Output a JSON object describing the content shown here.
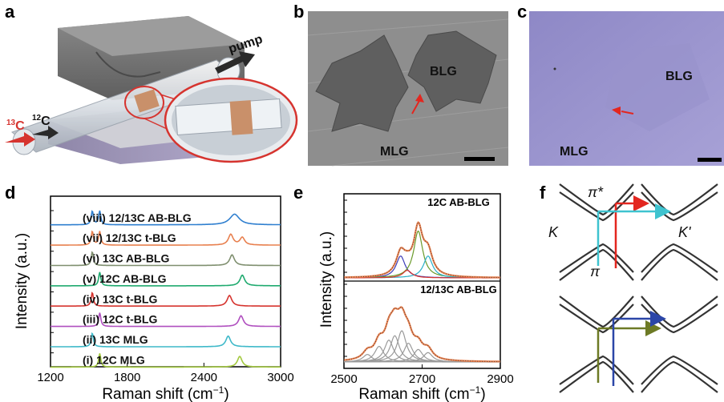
{
  "panels": {
    "a": {
      "label": "a",
      "inlet_13c": "13C",
      "inlet_12c": "12C",
      "pump": "pump"
    },
    "b": {
      "label": "b",
      "region_bilayer": "BLG",
      "region_monolayer": "MLG"
    },
    "c": {
      "label": "c",
      "region_bilayer": "BLG",
      "region_monolayer": "MLG"
    },
    "d": {
      "label": "d",
      "ylabel": "Intensity (a.u.)",
      "xlabel": "Raman shift (cm",
      "xlabel_sup": "−1",
      "xlabel_tail": ")"
    },
    "e": {
      "label": "e",
      "ylabel": "Intensity (a.u.)",
      "xlabel": "Raman shift (cm",
      "xlabel_sup": "−1",
      "xlabel_tail": ")",
      "top_label": "12C AB-BLG",
      "bottom_label": "12/13C AB-BLG"
    },
    "f": {
      "label": "f",
      "pi_star": "π*",
      "pi": "π",
      "k": "K",
      "k_prime": "K'"
    }
  },
  "chart_data": [
    {
      "type": "line",
      "panel": "d",
      "xlabel": "Raman shift (cm−1)",
      "ylabel": "Intensity (a.u.)",
      "xlim": [
        1200,
        3000
      ],
      "xticks": [
        1200,
        1800,
        2400,
        3000
      ],
      "series": [
        {
          "name": "(viii) 12/13C AB-BLG",
          "color": "#2f7fcf",
          "g_peaks": [
            1527,
            1585
          ],
          "twod": 2640,
          "twod_broad": true
        },
        {
          "name": "(vii) 12/13C t-BLG",
          "color": "#e8804f",
          "g_peaks": [
            1527,
            1585
          ],
          "twod": 2610,
          "twod2": 2700
        },
        {
          "name": "(vi) 13C AB-BLG",
          "color": "#7f8f6f",
          "g_peaks": [
            1527
          ],
          "twod": 2620
        },
        {
          "name": "(v) 12C AB-BLG",
          "color": "#1faa6f",
          "g_peaks": [
            1585
          ],
          "twod": 2700
        },
        {
          "name": "(iv) 13C t-BLG",
          "color": "#d6342f",
          "g_peaks": [
            1527
          ],
          "twod": 2600
        },
        {
          "name": "(iii) 12C t-BLG",
          "color": "#b04fbf",
          "g_peaks": [
            1585
          ],
          "twod": 2690
        },
        {
          "name": "(ii) 13C MLG",
          "color": "#3fb9c9",
          "g_peaks": [
            1527
          ],
          "twod": 2590
        },
        {
          "name": "(i) 12C MLG",
          "color": "#a3c93f",
          "g_peaks": [
            1585
          ],
          "twod": 2680
        }
      ]
    },
    {
      "type": "line",
      "panel": "e",
      "xlabel": "Raman shift (cm−1)",
      "ylabel": "Intensity (a.u.)",
      "xlim": [
        2500,
        2900
      ],
      "xticks": [
        2500,
        2700,
        2900
      ],
      "series": [
        {
          "name": "12C AB-BLG",
          "components": [
            {
              "center": 2645,
              "color": "#3b3bb8",
              "amp": 0.35
            },
            {
              "center": 2690,
              "color": "#6a9a2a",
              "amp": 0.75
            },
            {
              "center": 2715,
              "color": "#2ab0c8",
              "amp": 0.35
            },
            {
              "center": 2662,
              "color": "#d6342f",
              "amp": 0.12
            }
          ]
        },
        {
          "name": "12/13C AB-BLG",
          "components": [
            {
              "center": 2560,
              "color": "#9a9a9a",
              "amp": 0.12
            },
            {
              "center": 2590,
              "color": "#9a9a9a",
              "amp": 0.25
            },
            {
              "center": 2615,
              "color": "#9a9a9a",
              "amp": 0.35
            },
            {
              "center": 2630,
              "color": "#9a9a9a",
              "amp": 0.42
            },
            {
              "center": 2648,
              "color": "#9a9a9a",
              "amp": 0.5
            },
            {
              "center": 2665,
              "color": "#9a9a9a",
              "amp": 0.3
            },
            {
              "center": 2690,
              "color": "#9a9a9a",
              "amp": 0.2
            },
            {
              "center": 2715,
              "color": "#9a9a9a",
              "amp": 0.15
            }
          ]
        }
      ]
    }
  ]
}
